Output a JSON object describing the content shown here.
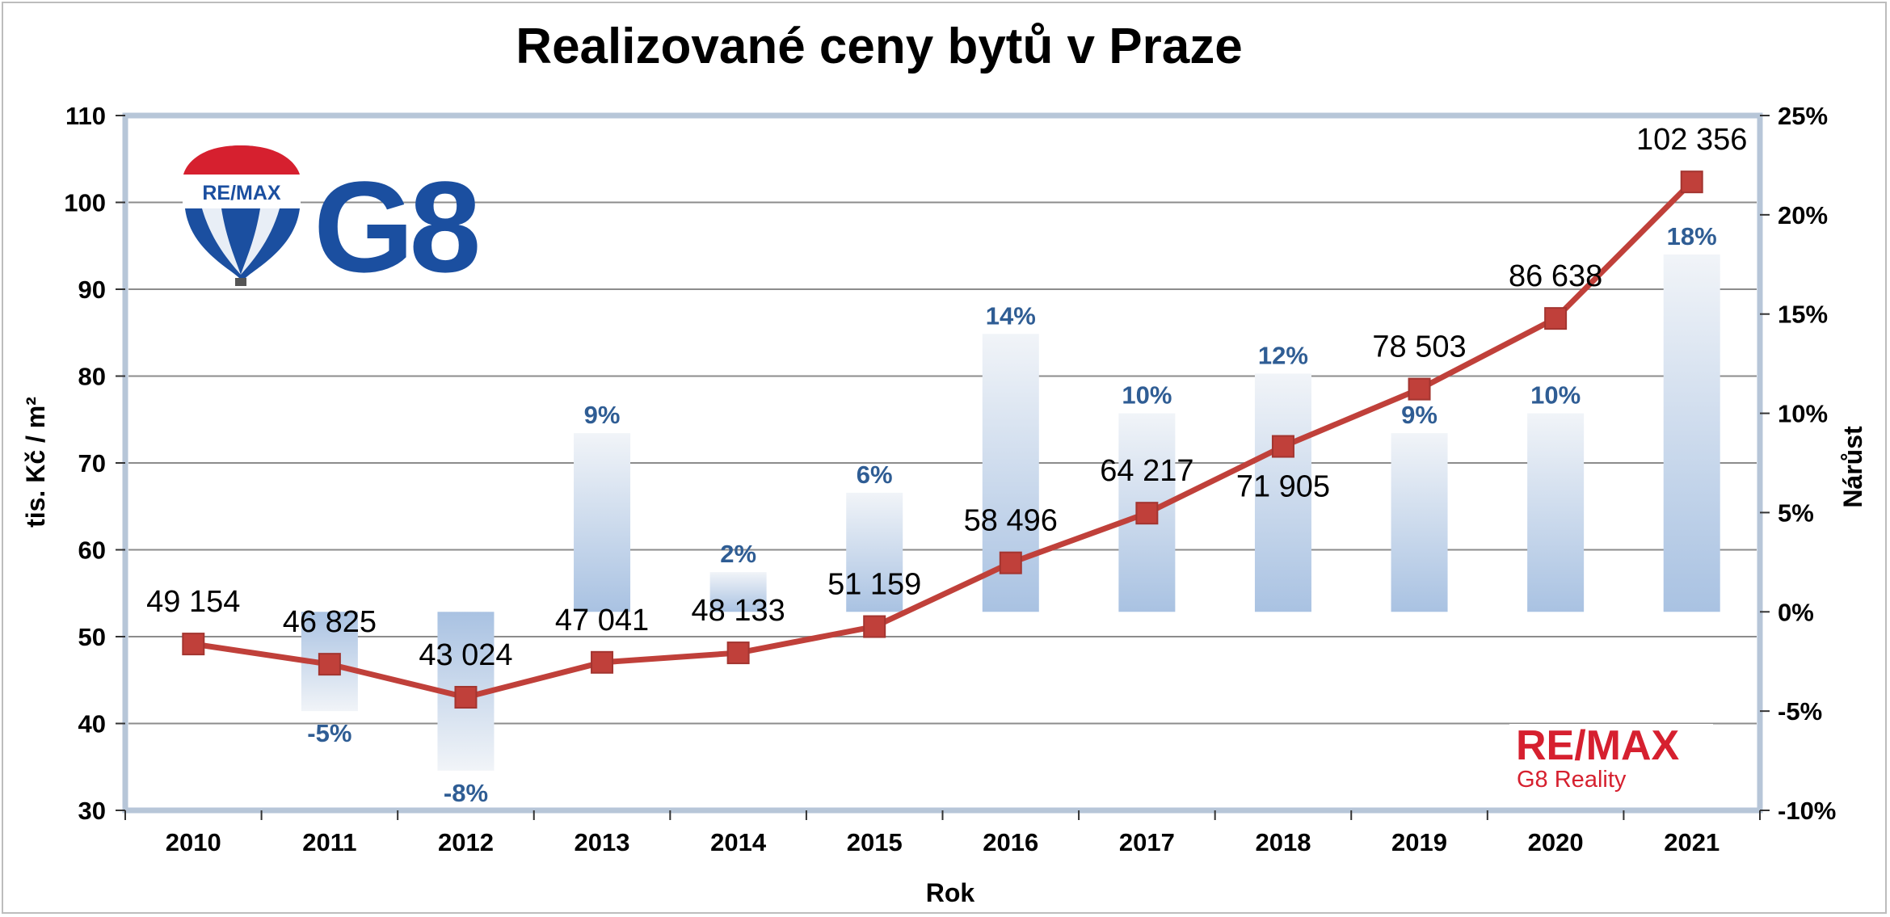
{
  "chart_data": {
    "type": "bar+line",
    "title": "Realizované ceny bytů v Praze",
    "xlabel": "Rok",
    "ylabel": "tis. Kč / m²",
    "y2label": "Nárůst",
    "categories": [
      "2010",
      "2011",
      "2012",
      "2013",
      "2014",
      "2015",
      "2016",
      "2017",
      "2018",
      "2019",
      "2020",
      "2021"
    ],
    "ylim": [
      30,
      110
    ],
    "yticks": [
      "30",
      "40",
      "50",
      "60",
      "70",
      "80",
      "90",
      "100",
      "110"
    ],
    "y2lim": [
      -10,
      25
    ],
    "y2ticks": [
      "-10%",
      "-5%",
      "0%",
      "5%",
      "10%",
      "15%",
      "20%",
      "25%"
    ],
    "grid": true,
    "series": [
      {
        "type": "line",
        "axis": "left",
        "values": [
          49.154,
          46.825,
          43.024,
          47.041,
          48.133,
          51.159,
          58.496,
          64.217,
          71.905,
          78.503,
          86.638,
          102.356
        ],
        "labels": [
          "49 154",
          "46 825",
          "43 024",
          "47 041",
          "48 133",
          "51 159",
          "58 496",
          "64 217",
          "71 905",
          "78 503",
          "86 638",
          "102 356"
        ],
        "color": "#c0403a"
      },
      {
        "type": "bar",
        "axis": "right",
        "values": [
          null,
          -5,
          -8,
          9,
          2,
          6,
          14,
          10,
          12,
          9,
          10,
          18
        ],
        "labels": [
          "",
          "-5%",
          "-8%",
          "9%",
          "2%",
          "6%",
          "14%",
          "10%",
          "12%",
          "9%",
          "10%",
          "18%"
        ],
        "color": "#a9c2e2"
      }
    ]
  },
  "logos": {
    "balloon_text": "RE/MAX",
    "brand_g8": "G8",
    "remax_text": "RE/MAX",
    "remax_subtext": "G8 Reality"
  },
  "colors": {
    "line": "#c0403a",
    "marker": "#c0403a",
    "bar_top": "#eef2f7",
    "bar_bottom": "#a9c2e2",
    "pct_label": "#2f5d94",
    "brand_blue": "#1b4fa0",
    "brand_red": "#d6202f"
  }
}
